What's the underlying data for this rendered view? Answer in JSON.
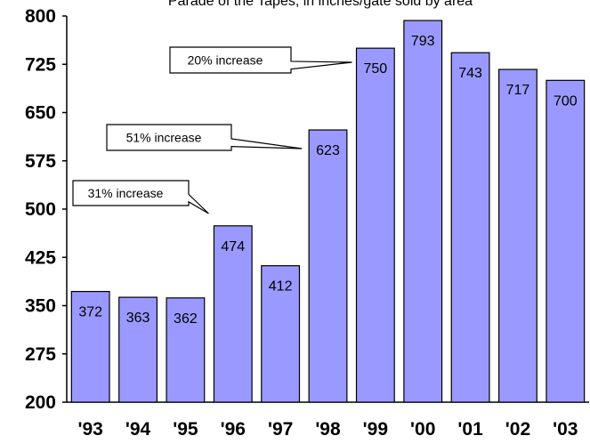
{
  "chart_data": {
    "type": "bar",
    "title": "Parade of the Tapes, in inches/gate sold by area",
    "categories": [
      "'93",
      "'94",
      "'95",
      "'96",
      "'97",
      "'98",
      "'99",
      "'00",
      "'01",
      "'02",
      "'03"
    ],
    "values": [
      372,
      363,
      362,
      474,
      412,
      623,
      750,
      793,
      743,
      717,
      700
    ],
    "ylim": [
      200,
      800
    ],
    "yticks": [
      200,
      275,
      350,
      425,
      500,
      575,
      650,
      725,
      800
    ],
    "grid": false,
    "bar_color": "#9999ff",
    "bar_stroke": "#000000",
    "annotations": [
      {
        "text": "20% increase",
        "target_category": "'99"
      },
      {
        "text": "51% increase",
        "target_category": "'98"
      },
      {
        "text": "31% increase",
        "target_category": "'96"
      }
    ]
  }
}
